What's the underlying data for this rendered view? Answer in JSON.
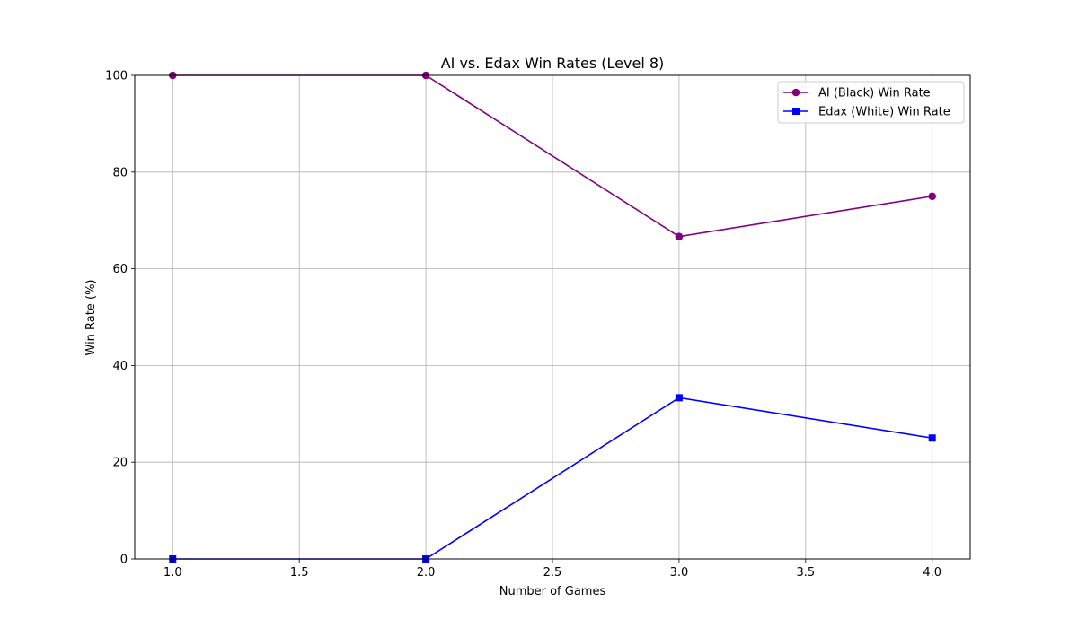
{
  "chart_data": {
    "type": "line",
    "title": "AI vs. Edax Win Rates (Level 8)",
    "xlabel": "Number of Games",
    "ylabel": "Win Rate (%)",
    "x": [
      1,
      2,
      3,
      4
    ],
    "xlim": [
      0.85,
      4.15
    ],
    "ylim": [
      0,
      100
    ],
    "xticks": [
      1.0,
      1.5,
      2.0,
      2.5,
      3.0,
      3.5,
      4.0
    ],
    "xtick_labels": [
      "1.0",
      "1.5",
      "2.0",
      "2.5",
      "3.0",
      "3.5",
      "4.0"
    ],
    "yticks": [
      0,
      20,
      40,
      60,
      80,
      100
    ],
    "ytick_labels": [
      "0",
      "20",
      "40",
      "60",
      "80",
      "100"
    ],
    "grid": true,
    "legend_position": "top-right",
    "series": [
      {
        "name": "AI (Black) Win Rate",
        "values": [
          100,
          100,
          66.67,
          75
        ],
        "color": "#800080",
        "marker": "circle"
      },
      {
        "name": "Edax (White) Win Rate",
        "values": [
          0,
          0,
          33.33,
          25
        ],
        "color": "#0000ff",
        "marker": "square"
      }
    ]
  }
}
